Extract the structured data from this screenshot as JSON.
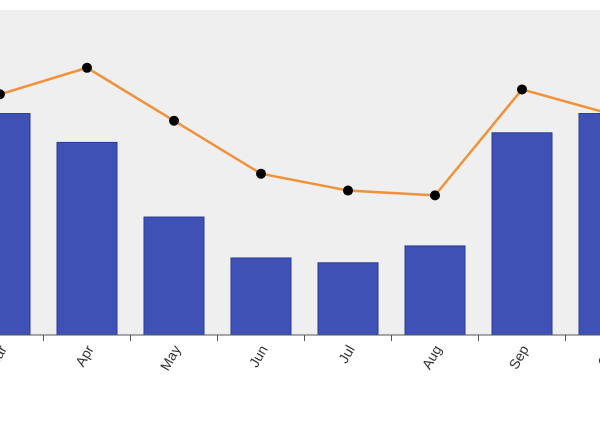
{
  "colors": {
    "plot_background": "#efefef",
    "bar": "#3f51b5",
    "bar_edge": "#2a3a99",
    "line": "#f0923a",
    "marker": "#000000",
    "axis": "#555555"
  },
  "chart_data": {
    "type": "bar",
    "categories": [
      "Mar",
      "Apr",
      "May",
      "Jun",
      "Jul",
      "Aug",
      "Sep",
      "Oct"
    ],
    "series": [
      {
        "type": "bar",
        "values": [
          92,
          80,
          49,
          32,
          30,
          37,
          84,
          92
        ]
      },
      {
        "type": "line",
        "values": [
          100,
          111,
          89,
          67,
          60,
          58,
          102,
          92
        ]
      }
    ],
    "ylim": [
      0,
      135
    ],
    "grid": false,
    "legend": "none",
    "xlabel": "",
    "ylabel": "",
    "title": ""
  }
}
